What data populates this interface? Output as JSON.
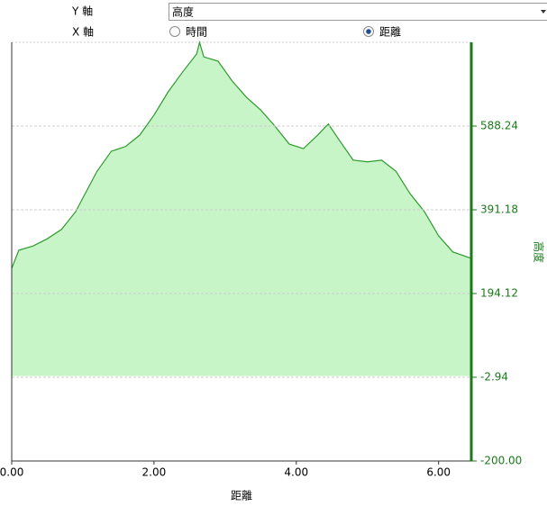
{
  "controls": {
    "y_axis_label": "Y 軸",
    "y_axis_value": "高度",
    "x_axis_label": "X 軸",
    "x_options": [
      "時間",
      "距離"
    ],
    "x_selected": 1
  },
  "chart_data": {
    "type": "area",
    "x_label": "距離",
    "y_label": "高度",
    "x": [
      0,
      0.1,
      0.3,
      0.5,
      0.7,
      0.9,
      1.0,
      1.2,
      1.4,
      1.6,
      1.8,
      2.0,
      2.2,
      2.4,
      2.6,
      2.64,
      2.7,
      2.9,
      3.1,
      3.3,
      3.5,
      3.7,
      3.9,
      4.1,
      4.3,
      4.45,
      4.6,
      4.8,
      5.0,
      5.2,
      5.4,
      5.6,
      5.8,
      6.0,
      6.2,
      6.46
    ],
    "series": [
      {
        "name": "高度",
        "color": "#2e9a2e",
        "values": [
          253,
          296,
          306,
          323,
          345,
          387,
          419,
          482,
          529,
          540,
          567,
          614,
          669,
          715,
          758,
          785,
          751,
          741,
          694,
          656,
          626,
          588,
          546,
          535,
          567,
          593,
          556,
          508,
          504,
          508,
          482,
          429,
          387,
          330,
          292,
          277
        ]
      }
    ],
    "fill": "#c8f5c8",
    "xlim": [
      0,
      6.46
    ],
    "xticks": [
      {
        "value": 0,
        "label": "0.00"
      },
      {
        "value": 2,
        "label": "2.00"
      },
      {
        "value": 4,
        "label": "4.00"
      },
      {
        "value": 6,
        "label": "6.00"
      }
    ],
    "ylim": [
      -200,
      785.3
    ],
    "yticks": [
      {
        "value": -200,
        "label": "-200.00"
      },
      -2.94,
      194.12,
      391.18,
      588.24
    ],
    "grid": true
  }
}
